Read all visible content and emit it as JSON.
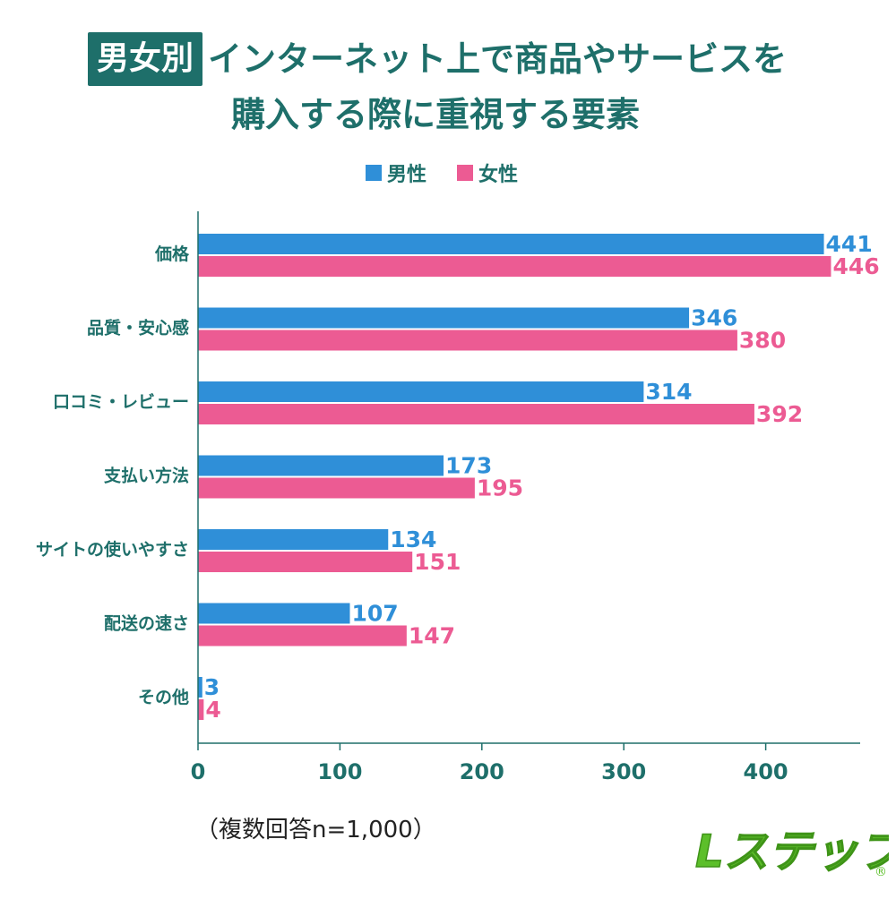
{
  "title": {
    "badge": "男女別",
    "line1": "インターネット上で商品やサービスを",
    "line2": "購入する際に重視する要素"
  },
  "legend": [
    {
      "label": "男性",
      "color": "#2f8fd8"
    },
    {
      "label": "女性",
      "color": "#ec5b93"
    }
  ],
  "note": "（複数回答n=1,000）",
  "logo": {
    "text": "Lステップ",
    "registered": "®",
    "color": "#5cbf2a"
  },
  "colors": {
    "axis": "#1e6f6a",
    "label": "#1e6f6a"
  },
  "chart_data": {
    "type": "bar",
    "orientation": "horizontal",
    "categories": [
      "価格",
      "品質・安心感",
      "口コミ・レビュー",
      "支払い方法",
      "サイトの使いやすさ",
      "配送の速さ",
      "その他"
    ],
    "series": [
      {
        "name": "男性",
        "color": "#2f8fd8",
        "values": [
          441,
          346,
          314,
          173,
          134,
          107,
          3
        ]
      },
      {
        "name": "女性",
        "color": "#ec5b93",
        "values": [
          446,
          380,
          392,
          195,
          151,
          147,
          4
        ]
      }
    ],
    "xlim": [
      0,
      467
    ],
    "xticks": [
      0,
      100,
      200,
      300,
      400
    ],
    "grid": false,
    "legend_position": "top"
  }
}
